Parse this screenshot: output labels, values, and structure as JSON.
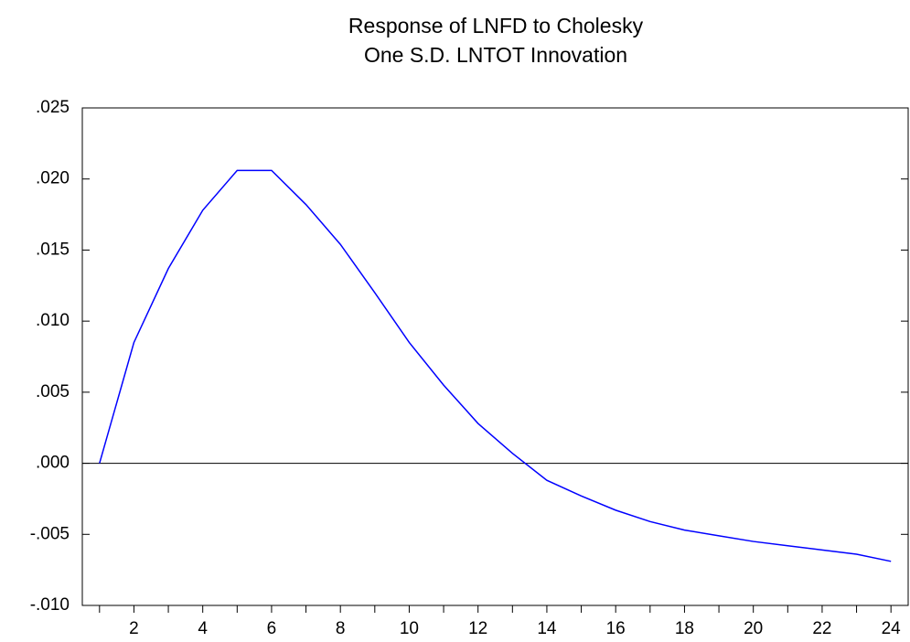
{
  "chart_data": {
    "type": "line",
    "title": [
      "Response of LNFD to Cholesky",
      "One S.D. LNTOT Innovation"
    ],
    "categories": [
      null,
      "2",
      null,
      "4",
      null,
      "6",
      null,
      "8",
      null,
      "10",
      null,
      "12",
      null,
      "14",
      null,
      "16",
      null,
      "18",
      null,
      "20",
      null,
      "22",
      null,
      "24"
    ],
    "values": [
      0.0,
      0.0085,
      0.0137,
      0.0178,
      0.0206,
      0.0206,
      0.0182,
      0.0154,
      0.012,
      0.0085,
      0.0055,
      0.0028,
      0.0007,
      -0.0012,
      -0.0023,
      -0.0033,
      -0.0041,
      -0.0047,
      -0.0051,
      -0.0055,
      -0.0058,
      -0.0061,
      -0.0064,
      -0.0069
    ],
    "color": "#0000ff",
    "ylim": [
      -0.01,
      0.025
    ],
    "yticks": [
      {
        "value": -0.01,
        "label": "-.010"
      },
      {
        "value": -0.005,
        "label": "-.005"
      },
      {
        "value": 0,
        "label": ".000"
      },
      {
        "value": 0.005,
        "label": ".005"
      },
      {
        "value": 0.01,
        "label": ".010"
      },
      {
        "value": 0.015,
        "label": ".015"
      },
      {
        "value": 0.02,
        "label": ".020"
      },
      {
        "value": 0.025,
        "label": ".025"
      }
    ],
    "zero_line": true,
    "grid": false
  }
}
